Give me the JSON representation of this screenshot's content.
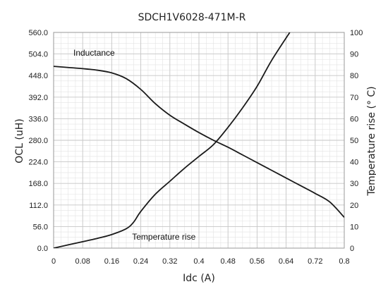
{
  "chart_data": {
    "type": "line",
    "title": "SDCH1V6028-471M-R",
    "xlabel": "Idc (A)",
    "ylabel_left": "OCL (uH)",
    "ylabel_right": "Temperature rise (° C)",
    "xlim": [
      0,
      0.8
    ],
    "ylim_left": [
      0,
      560
    ],
    "ylim_right": [
      0,
      100
    ],
    "x_ticks": [
      "0",
      "0.08",
      "0.16",
      "0.24",
      "0.32",
      "0.4",
      "0.48",
      "0.56",
      "0.64",
      "0.72",
      "0.8"
    ],
    "y_left_ticks": [
      "0.0",
      "56.0",
      "112.0",
      "168.0",
      "224.0",
      "280.0",
      "336.0",
      "392.0",
      "448.0",
      "504.0",
      "560.0"
    ],
    "y_right_ticks": [
      "0",
      "10",
      "20",
      "30",
      "40",
      "50",
      "60",
      "70",
      "80",
      "90",
      "100"
    ],
    "grid": true,
    "series": [
      {
        "name": "Inductance",
        "axis": "left",
        "points": [
          [
            0,
            472
          ],
          [
            0.04,
            469
          ],
          [
            0.08,
            466
          ],
          [
            0.12,
            462
          ],
          [
            0.16,
            455
          ],
          [
            0.2,
            440
          ],
          [
            0.24,
            412
          ],
          [
            0.28,
            375
          ],
          [
            0.32,
            345
          ],
          [
            0.36,
            322
          ],
          [
            0.4,
            300
          ],
          [
            0.44,
            280
          ],
          [
            0.48,
            262
          ],
          [
            0.52,
            242
          ],
          [
            0.56,
            222
          ],
          [
            0.6,
            202
          ],
          [
            0.64,
            182
          ],
          [
            0.68,
            162
          ],
          [
            0.72,
            142
          ],
          [
            0.76,
            120
          ],
          [
            0.8,
            80
          ]
        ]
      },
      {
        "name": "Temperature rise",
        "axis": "right",
        "points": [
          [
            0,
            0
          ],
          [
            0.04,
            1.5
          ],
          [
            0.08,
            3
          ],
          [
            0.12,
            4.5
          ],
          [
            0.16,
            6.3
          ],
          [
            0.2,
            9
          ],
          [
            0.22,
            12
          ],
          [
            0.24,
            17
          ],
          [
            0.28,
            25
          ],
          [
            0.32,
            31
          ],
          [
            0.36,
            37
          ],
          [
            0.4,
            42.5
          ],
          [
            0.44,
            48
          ],
          [
            0.48,
            56
          ],
          [
            0.52,
            65
          ],
          [
            0.56,
            75
          ],
          [
            0.6,
            87
          ],
          [
            0.65,
            100
          ]
        ]
      }
    ]
  }
}
